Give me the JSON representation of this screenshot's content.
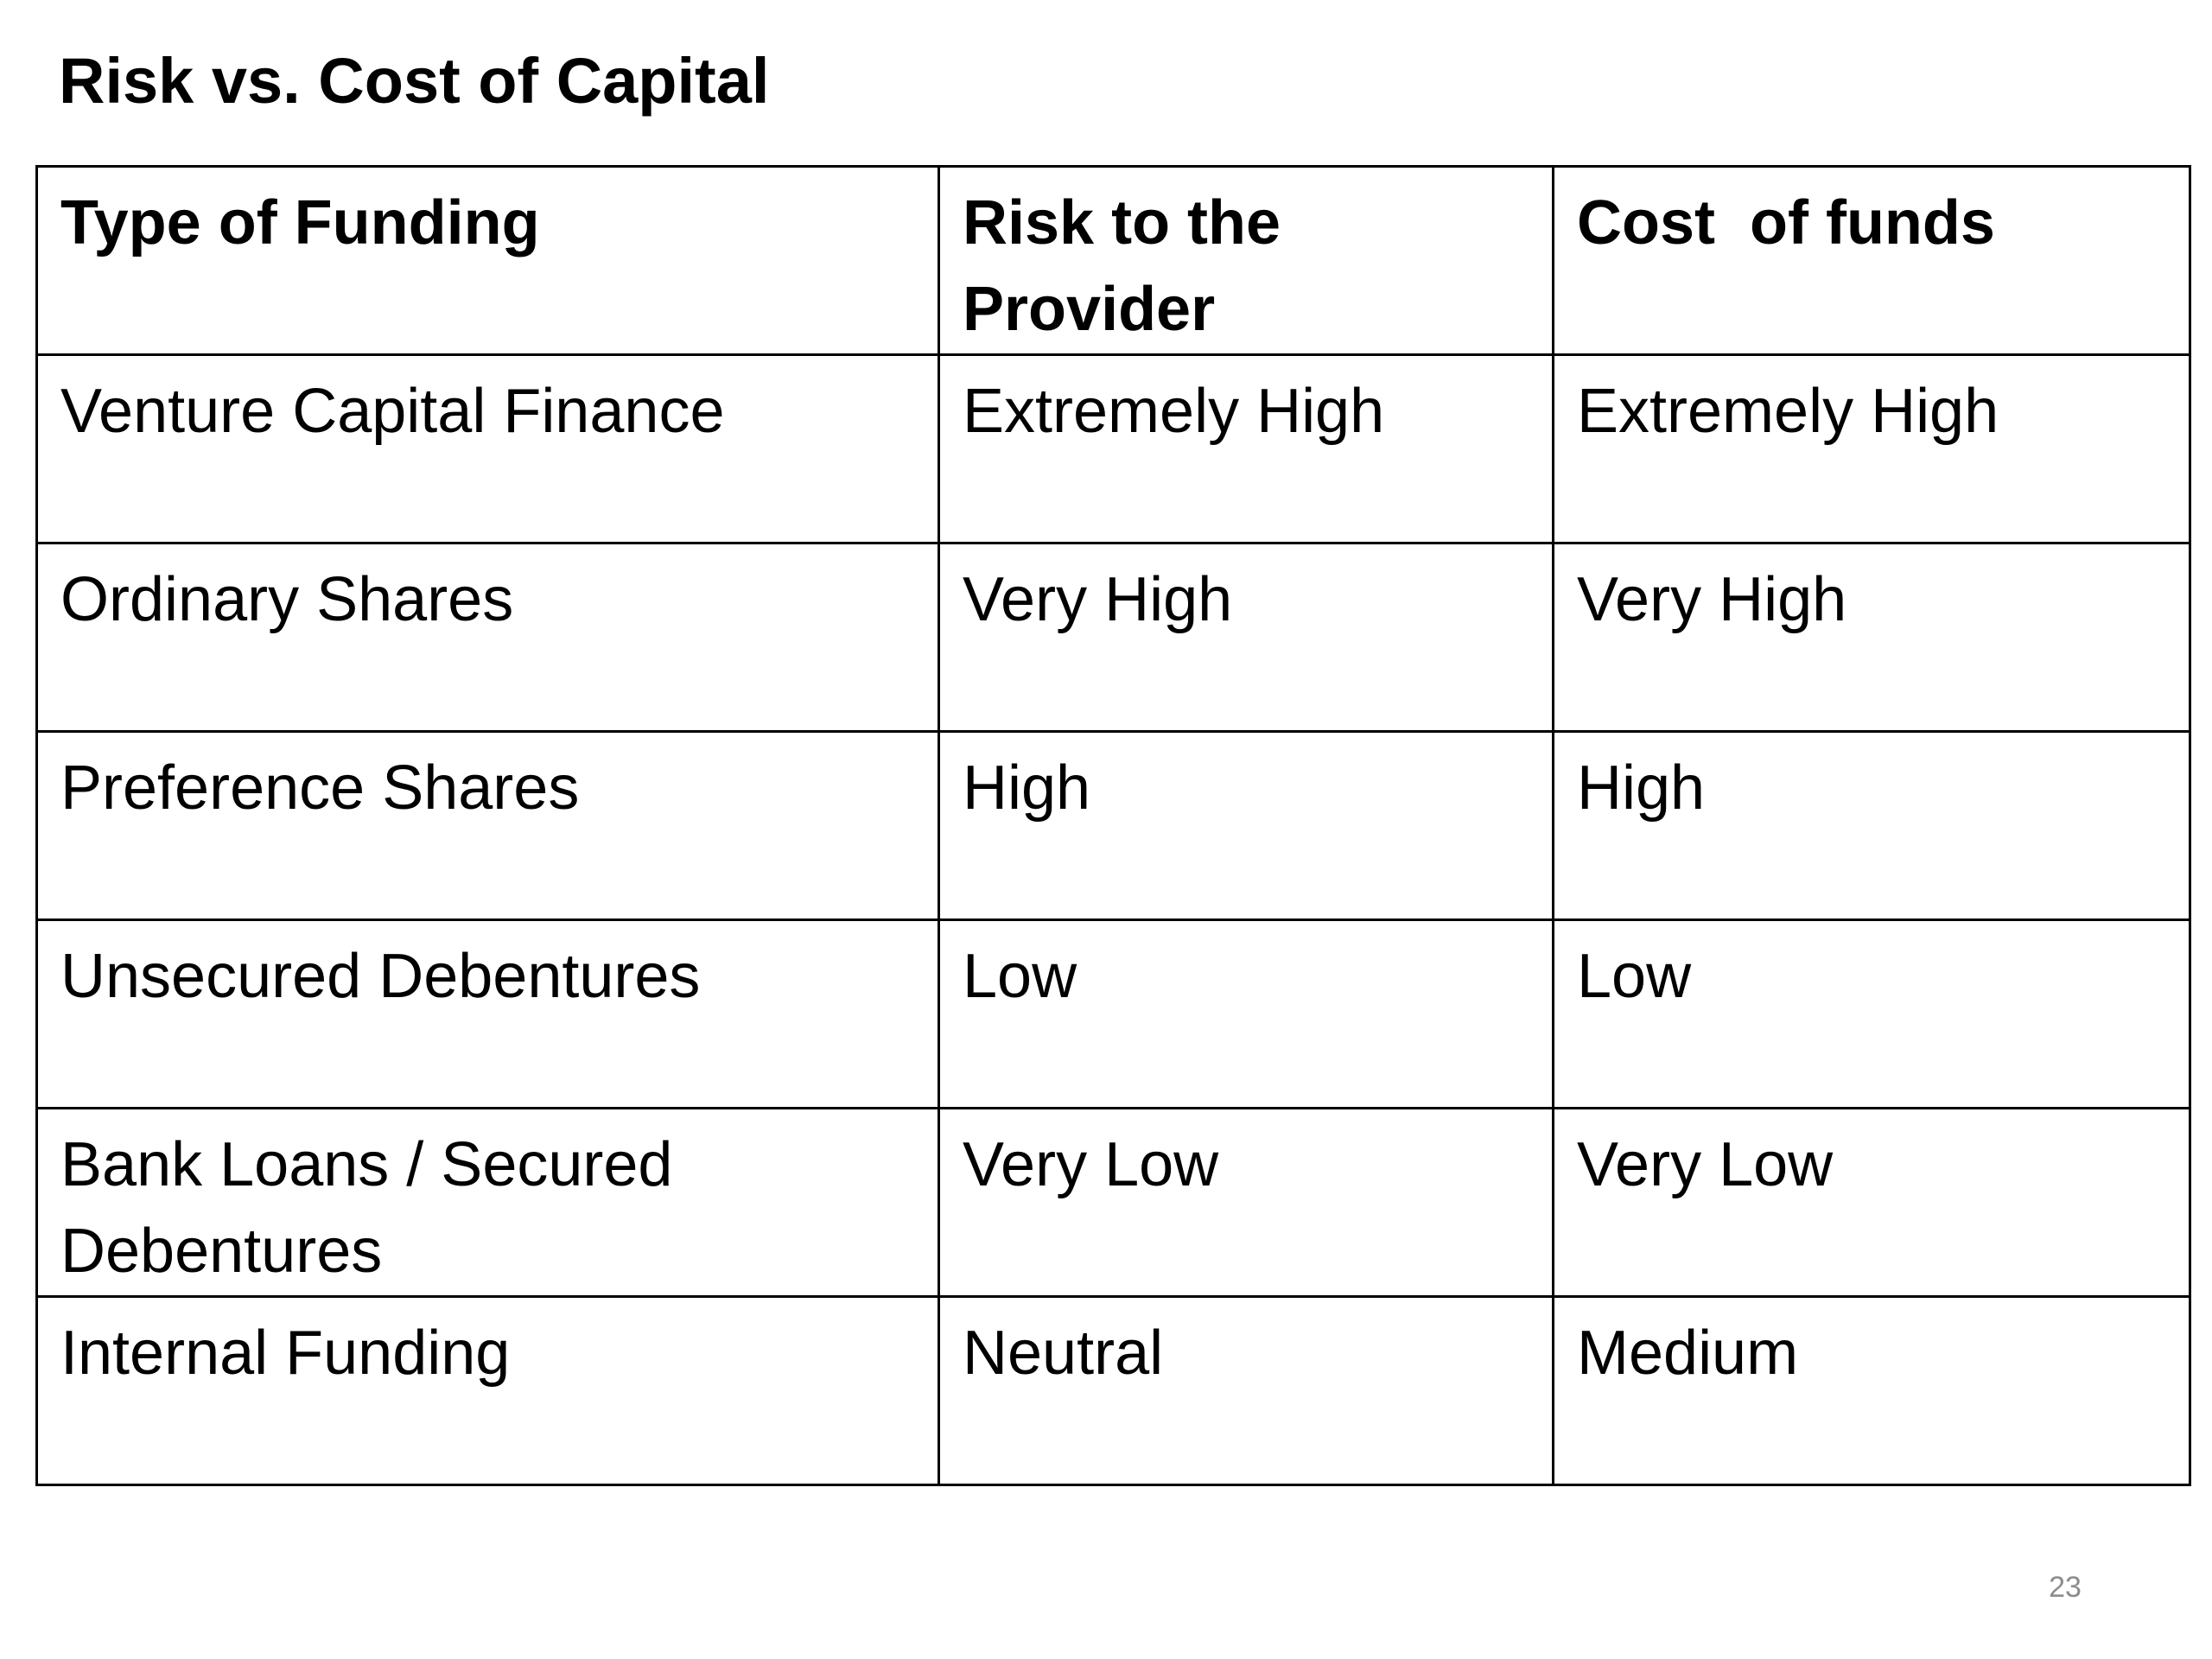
{
  "slide": {
    "title": "Risk vs. Cost of Capital",
    "page_number": "23"
  },
  "table": {
    "headers": {
      "type": "Type of Funding",
      "risk": "Risk to the Provider",
      "cost": "Cost  of funds"
    },
    "rows": [
      {
        "type": "Venture Capital Finance",
        "risk": "Extremely High",
        "cost": "Extremely High"
      },
      {
        "type": "Ordinary Shares",
        "risk": "Very High",
        "cost": "Very High"
      },
      {
        "type": "Preference Shares",
        "risk": "High",
        "cost": "High"
      },
      {
        "type": "Unsecured Debentures",
        "risk": "Low",
        "cost": "Low"
      },
      {
        "type": "Bank Loans / Secured Debentures",
        "risk": "Very Low",
        "cost": "Very Low"
      },
      {
        "type": "Internal Funding",
        "risk": "Neutral",
        "cost": "Medium"
      }
    ]
  }
}
